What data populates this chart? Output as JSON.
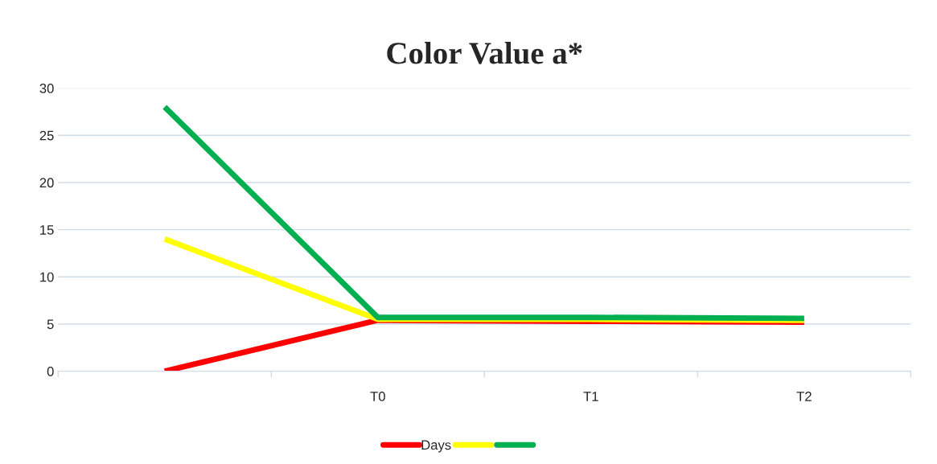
{
  "chart_data": {
    "type": "line",
    "title": "Color Value a*",
    "categories": [
      null,
      "T0",
      "T1",
      "T2"
    ],
    "series": [
      {
        "name": "Days",
        "color": "#ff0000",
        "values": [
          0,
          5.4,
          5.3,
          5.2
        ]
      },
      {
        "color": "#ffff00",
        "values": [
          14,
          5.5,
          5.5,
          5.4
        ]
      },
      {
        "color": "#00b050",
        "values": [
          28,
          5.7,
          5.7,
          5.6
        ]
      }
    ],
    "ylim": [
      0,
      30
    ],
    "yticks": [
      0,
      5,
      10,
      15,
      20,
      25,
      30
    ],
    "grid": "y",
    "legend": "bottom",
    "marker": "none",
    "line_style": "solid"
  }
}
